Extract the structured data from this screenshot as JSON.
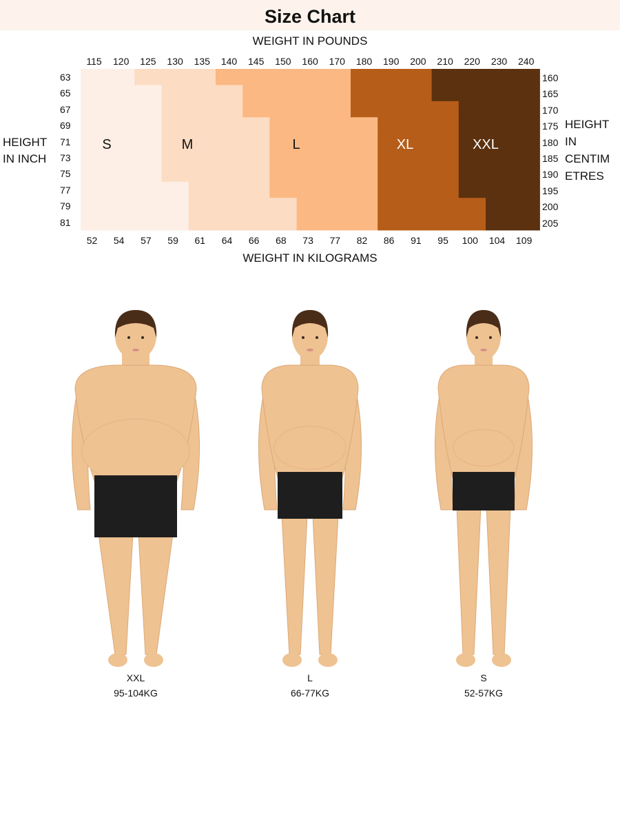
{
  "title": "Size Chart",
  "chart_data": {
    "type": "heatmap",
    "title": "Size Chart",
    "xlabel_top": "WEIGHT IN POUNDS",
    "xlabel_bottom": "WEIGHT IN KILOGRAMS",
    "ylabel_left": [
      "HEIGHT",
      "IN INCH"
    ],
    "ylabel_right": [
      "HEIGHT",
      "IN",
      "CENTIM",
      "ETRES"
    ],
    "weight_lb": [
      "115",
      "120",
      "125",
      "130",
      "135",
      "140",
      "145",
      "150",
      "160",
      "170",
      "180",
      "190",
      "200",
      "210",
      "220",
      "230",
      "240"
    ],
    "weight_kg": [
      "52",
      "54",
      "57",
      "59",
      "61",
      "64",
      "66",
      "68",
      "73",
      "77",
      "82",
      "86",
      "91",
      "95",
      "100",
      "104",
      "109"
    ],
    "height_in": [
      "63",
      "65",
      "67",
      "69",
      "71",
      "73",
      "75",
      "77",
      "79",
      "81"
    ],
    "height_cm": [
      "160",
      "165",
      "170",
      "175",
      "180",
      "185",
      "190",
      "195",
      "200",
      "205"
    ],
    "sizes": [
      {
        "name": "S",
        "color": "#fdefe5",
        "text_color": "#111111"
      },
      {
        "name": "M",
        "color": "#fcdcc3",
        "text_color": "#111111"
      },
      {
        "name": "L",
        "color": "#fbb883",
        "text_color": "#111111"
      },
      {
        "name": "XL",
        "color": "#b65d19",
        "text_color": "#ffffff"
      },
      {
        "name": "XXL",
        "color": "#5b310f",
        "text_color": "#ffffff"
      }
    ],
    "size_start_columns_by_row": [
      [
        0,
        2,
        5,
        10,
        13
      ],
      [
        0,
        3,
        6,
        10,
        13
      ],
      [
        0,
        3,
        6,
        10,
        14
      ],
      [
        0,
        3,
        7,
        11,
        14
      ],
      [
        0,
        3,
        7,
        11,
        14
      ],
      [
        0,
        3,
        7,
        11,
        14
      ],
      [
        0,
        3,
        7,
        11,
        14
      ],
      [
        0,
        4,
        7,
        11,
        14
      ],
      [
        0,
        4,
        8,
        11,
        15
      ],
      [
        0,
        4,
        8,
        11,
        15
      ]
    ]
  },
  "figures": [
    {
      "size": "XXL",
      "range": "95-104KG"
    },
    {
      "size": "L",
      "range": "66-77KG"
    },
    {
      "size": "S",
      "range": "52-57KG"
    }
  ],
  "colors": {
    "skin": "#efc292",
    "skin_shade": "#dba877",
    "hair": "#4a2d18",
    "shorts": "#1e1e1e",
    "title_bg": "#fdf3ec"
  }
}
